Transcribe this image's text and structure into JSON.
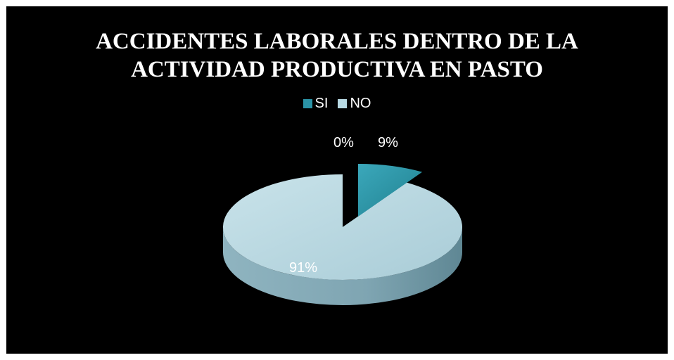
{
  "chart_data": {
    "type": "pie",
    "title_lines": [
      "ACCIDENTES LABORALES DENTRO DE LA",
      "ACTIVIDAD PRODUCTIVA EN PASTO"
    ],
    "legend_position": "top",
    "categories": [
      "SI",
      "NO"
    ],
    "values": [
      9,
      91
    ],
    "data_labels": [
      "9%",
      "91%"
    ],
    "extra_labels": [
      "0%"
    ],
    "colors": {
      "SI": "#2B93A6",
      "NO": "#B7D9E3",
      "background": "#000000",
      "label_dark": "#000000",
      "label_light": "#ffffff"
    },
    "style": "3d-exploded"
  }
}
